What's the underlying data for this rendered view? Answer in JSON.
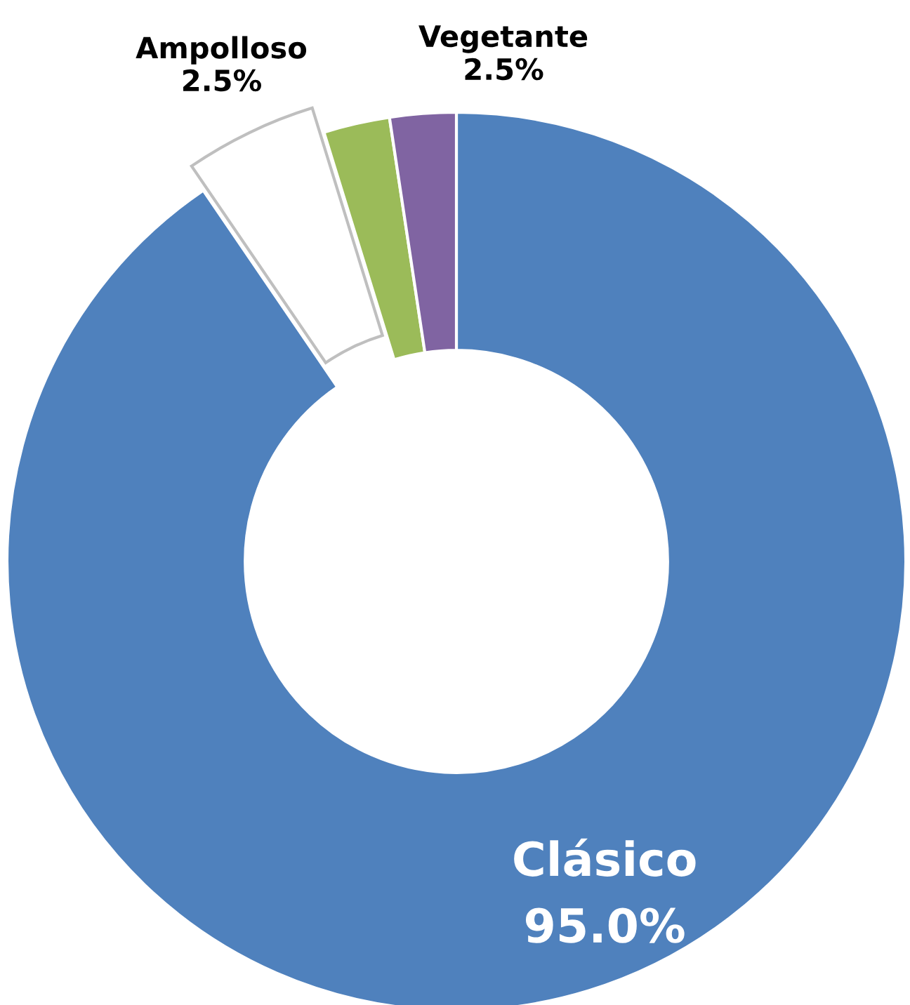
{
  "chart_data": {
    "type": "donut",
    "categories": [
      "Clásico",
      null,
      "Ampolloso",
      "Vegetante"
    ],
    "values": [
      95.0,
      5,
      2.5,
      2.5
    ],
    "value_labels": [
      "95.0%",
      null,
      "2.5%",
      "2.5%"
    ],
    "colors": [
      "#4f81bd",
      "#ffffff",
      "#9bbb59",
      "#8064a2"
    ],
    "legend": false
  }
}
